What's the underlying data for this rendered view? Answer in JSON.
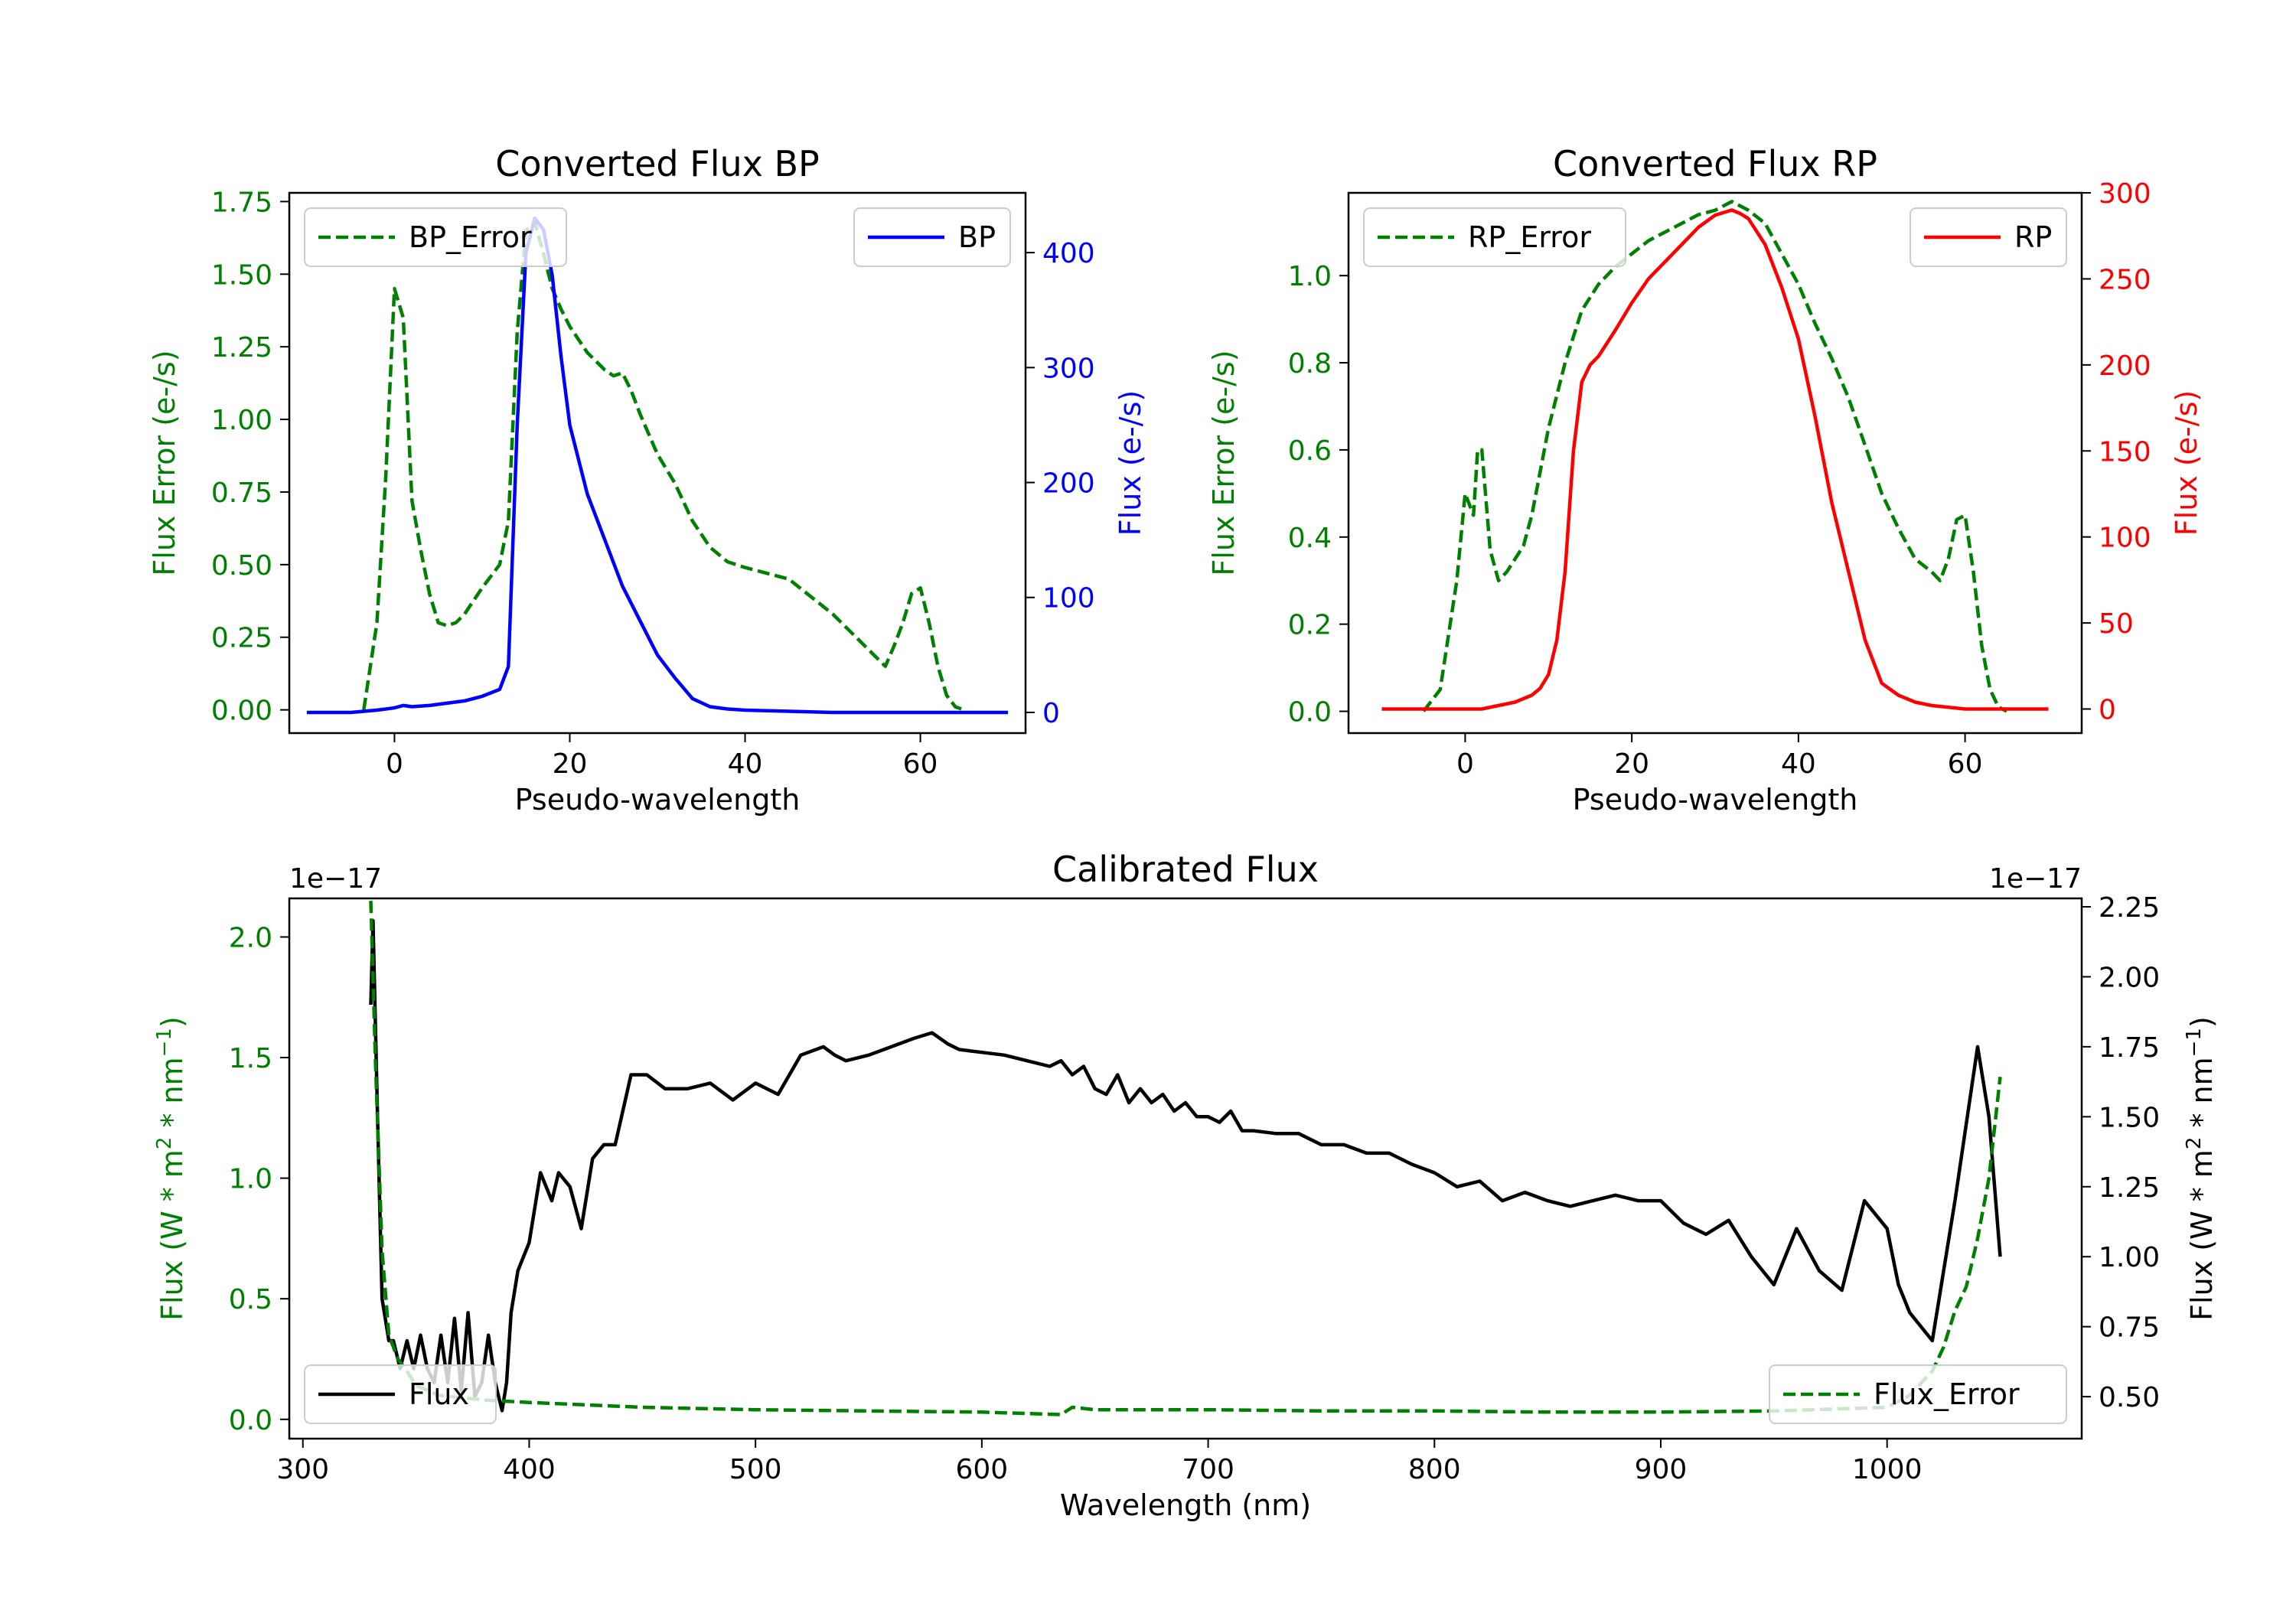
{
  "chart_data": [
    {
      "id": "bp",
      "type": "line",
      "title": "Converted Flux BP",
      "xlabel": "Pseudo-wavelength",
      "xlim": [
        -12,
        72
      ],
      "x_ticks": [
        0,
        20,
        40,
        60
      ],
      "left_axis": {
        "label": "Flux Error (e-/s)",
        "color": "#008000",
        "lim": [
          -0.08,
          1.78
        ],
        "ticks": [
          "0.00",
          "0.25",
          "0.50",
          "0.75",
          "1.00",
          "1.25",
          "1.50",
          "1.75"
        ]
      },
      "right_axis": {
        "label": "Flux (e-/s)",
        "color": "#0000ff",
        "lim": [
          -18,
          452
        ],
        "ticks": [
          "0",
          "100",
          "200",
          "300",
          "400"
        ]
      },
      "series": [
        {
          "name": "BP_Error",
          "axis": "left",
          "color": "#008000",
          "style": "dashed",
          "x": [
            -3.5,
            -2,
            -1,
            0,
            1,
            2,
            3,
            4,
            5,
            6,
            7,
            8,
            10,
            12,
            13,
            14,
            15,
            16,
            17,
            18,
            19,
            20,
            22,
            24,
            25,
            26,
            27,
            28,
            30,
            32,
            34,
            36,
            38,
            40,
            45,
            50,
            55,
            56,
            57,
            58,
            59,
            60,
            61,
            62,
            63,
            64,
            65
          ],
          "y": [
            0,
            0.3,
            0.8,
            1.45,
            1.35,
            0.72,
            0.55,
            0.4,
            0.3,
            0.29,
            0.3,
            0.33,
            0.42,
            0.5,
            0.65,
            1.3,
            1.65,
            1.68,
            1.57,
            1.45,
            1.38,
            1.32,
            1.23,
            1.17,
            1.15,
            1.16,
            1.1,
            1.02,
            0.88,
            0.78,
            0.65,
            0.56,
            0.51,
            0.49,
            0.45,
            0.33,
            0.18,
            0.15,
            0.22,
            0.3,
            0.4,
            0.42,
            0.3,
            0.15,
            0.05,
            0.01,
            0
          ]
        },
        {
          "name": "BP",
          "axis": "right",
          "color": "#0000ff",
          "style": "solid",
          "x": [
            -10,
            -5,
            -2,
            0,
            1,
            2,
            4,
            6,
            8,
            10,
            12,
            13,
            14,
            15,
            16,
            17,
            18,
            19,
            20,
            22,
            24,
            26,
            28,
            30,
            32,
            34,
            36,
            38,
            40,
            45,
            50,
            55,
            60,
            65,
            70
          ],
          "y": [
            0,
            0,
            2,
            4,
            6,
            5,
            6,
            8,
            10,
            14,
            20,
            40,
            250,
            400,
            430,
            420,
            380,
            310,
            250,
            190,
            150,
            110,
            80,
            50,
            30,
            12,
            5,
            3,
            2,
            1,
            0,
            0,
            0,
            0,
            0
          ]
        }
      ],
      "legend": [
        {
          "label": "BP_Error",
          "position": "upper left"
        },
        {
          "label": "BP",
          "position": "upper right"
        }
      ]
    },
    {
      "id": "rp",
      "type": "line",
      "title": "Converted Flux RP",
      "xlabel": "Pseudo-wavelength",
      "xlim": [
        -14,
        74
      ],
      "x_ticks": [
        0,
        20,
        40,
        60
      ],
      "left_axis": {
        "label": "Flux Error (e-/s)",
        "color": "#008000",
        "lim": [
          -0.05,
          1.19
        ],
        "ticks": [
          "0.0",
          "0.2",
          "0.4",
          "0.6",
          "0.8",
          "1.0"
        ]
      },
      "right_axis": {
        "label": "Flux (e-/s)",
        "color": "#ff0000",
        "lim": [
          -14,
          300
        ],
        "ticks": [
          "0",
          "50",
          "100",
          "150",
          "200",
          "250",
          "300"
        ]
      },
      "series": [
        {
          "name": "RP_Error",
          "axis": "left",
          "color": "#008000",
          "style": "dashed",
          "x": [
            -5,
            -3,
            -1,
            0,
            1,
            1.5,
            2,
            3,
            4,
            5,
            6,
            7,
            8,
            10,
            12,
            14,
            16,
            18,
            20,
            22,
            24,
            26,
            28,
            30,
            32,
            34,
            36,
            38,
            40,
            42,
            44,
            46,
            48,
            50,
            52,
            54,
            56,
            57,
            58,
            59,
            60,
            61,
            62,
            63,
            64,
            65
          ],
          "y": [
            0,
            0.05,
            0.3,
            0.5,
            0.45,
            0.6,
            0.6,
            0.37,
            0.3,
            0.32,
            0.35,
            0.38,
            0.45,
            0.65,
            0.8,
            0.92,
            0.98,
            1.02,
            1.05,
            1.08,
            1.1,
            1.12,
            1.14,
            1.15,
            1.17,
            1.15,
            1.12,
            1.05,
            0.98,
            0.89,
            0.81,
            0.72,
            0.61,
            0.5,
            0.42,
            0.35,
            0.32,
            0.3,
            0.35,
            0.44,
            0.45,
            0.32,
            0.15,
            0.05,
            0.01,
            0
          ]
        },
        {
          "name": "RP",
          "axis": "right",
          "color": "#ff0000",
          "style": "solid",
          "x": [
            -10,
            -5,
            0,
            2,
            4,
            6,
            7,
            8,
            9,
            10,
            11,
            12,
            13,
            14,
            15,
            16,
            18,
            20,
            22,
            24,
            26,
            28,
            30,
            32,
            33,
            34,
            36,
            38,
            40,
            42,
            44,
            46,
            48,
            50,
            52,
            54,
            56,
            58,
            60,
            65,
            70
          ],
          "y": [
            0,
            0,
            0,
            0,
            2,
            4,
            6,
            8,
            12,
            20,
            40,
            80,
            150,
            190,
            200,
            205,
            220,
            236,
            250,
            260,
            270,
            280,
            287,
            290,
            288,
            285,
            270,
            245,
            215,
            170,
            120,
            80,
            40,
            15,
            8,
            4,
            2,
            1,
            0,
            0,
            0
          ]
        }
      ],
      "legend": [
        {
          "label": "RP_Error",
          "position": "upper left"
        },
        {
          "label": "RP",
          "position": "upper right"
        }
      ]
    },
    {
      "id": "cal",
      "type": "line",
      "title": "Calibrated Flux",
      "xlabel": "Wavelength (nm)",
      "xlim": [
        294,
        1086
      ],
      "x_ticks": [
        300,
        400,
        500,
        600,
        700,
        800,
        900,
        1000
      ],
      "left_axis": {
        "label": "Flux (W * m^2 * nm^-1)",
        "color": "#008000",
        "lim": [
          -0.08,
          2.16
        ],
        "ticks": [
          "0.0",
          "0.5",
          "1.0",
          "1.5",
          "2.0"
        ],
        "offset_text": "1e−17"
      },
      "right_axis": {
        "label": "Flux (W * m^2 * nm^-1)",
        "color": "#000000",
        "lim": [
          0.35,
          2.28
        ],
        "ticks": [
          "0.50",
          "0.75",
          "1.00",
          "1.25",
          "1.50",
          "1.75",
          "2.00",
          "2.25"
        ],
        "offset_text": "1e−17"
      },
      "series": [
        {
          "name": "Flux",
          "axis": "right",
          "color": "#000000",
          "style": "solid",
          "x": [
            330,
            331,
            333,
            335,
            338,
            340,
            343,
            346,
            349,
            352,
            355,
            358,
            361,
            364,
            367,
            370,
            373,
            376,
            379,
            382,
            385,
            388,
            390,
            392,
            395,
            400,
            405,
            410,
            413,
            418,
            423,
            428,
            433,
            438,
            445,
            452,
            460,
            470,
            480,
            490,
            500,
            510,
            520,
            530,
            535,
            540,
            550,
            560,
            570,
            578,
            585,
            590,
            600,
            610,
            620,
            630,
            635,
            640,
            645,
            650,
            655,
            660,
            665,
            670,
            675,
            680,
            685,
            690,
            695,
            700,
            705,
            710,
            715,
            720,
            730,
            740,
            750,
            760,
            770,
            780,
            790,
            800,
            810,
            820,
            830,
            840,
            850,
            860,
            870,
            880,
            890,
            900,
            910,
            920,
            930,
            940,
            950,
            960,
            970,
            980,
            990,
            1000,
            1005,
            1010,
            1020,
            1030,
            1040,
            1045,
            1050
          ],
          "y": [
            1.9,
            2.2,
            1.5,
            0.85,
            0.7,
            0.7,
            0.6,
            0.7,
            0.6,
            0.72,
            0.6,
            0.55,
            0.72,
            0.55,
            0.78,
            0.52,
            0.8,
            0.5,
            0.55,
            0.72,
            0.55,
            0.45,
            0.55,
            0.8,
            0.95,
            1.05,
            1.3,
            1.2,
            1.3,
            1.25,
            1.1,
            1.35,
            1.4,
            1.4,
            1.65,
            1.65,
            1.6,
            1.6,
            1.62,
            1.56,
            1.62,
            1.58,
            1.72,
            1.75,
            1.72,
            1.7,
            1.72,
            1.75,
            1.78,
            1.8,
            1.76,
            1.74,
            1.73,
            1.72,
            1.7,
            1.68,
            1.7,
            1.65,
            1.68,
            1.6,
            1.58,
            1.65,
            1.55,
            1.6,
            1.55,
            1.58,
            1.52,
            1.55,
            1.5,
            1.5,
            1.48,
            1.52,
            1.45,
            1.45,
            1.44,
            1.44,
            1.4,
            1.4,
            1.37,
            1.37,
            1.33,
            1.3,
            1.25,
            1.27,
            1.2,
            1.23,
            1.2,
            1.18,
            1.2,
            1.22,
            1.2,
            1.2,
            1.12,
            1.08,
            1.13,
            1.0,
            0.9,
            1.1,
            0.95,
            0.88,
            1.2,
            1.1,
            0.9,
            0.8,
            0.7,
            1.2,
            1.75,
            1.5,
            1.0
          ]
        },
        {
          "name": "Flux_Error",
          "axis": "left",
          "color": "#008000",
          "style": "dashed",
          "x": [
            330,
            332,
            335,
            338,
            342,
            346,
            350,
            360,
            380,
            400,
            450,
            500,
            550,
            600,
            635,
            640,
            650,
            700,
            750,
            800,
            850,
            900,
            950,
            1000,
            1010,
            1015,
            1020,
            1025,
            1030,
            1035,
            1040,
            1045,
            1050
          ],
          "y": [
            2.15,
            1.5,
            0.7,
            0.35,
            0.25,
            0.2,
            0.14,
            0.1,
            0.08,
            0.07,
            0.05,
            0.04,
            0.035,
            0.03,
            0.02,
            0.05,
            0.04,
            0.04,
            0.035,
            0.035,
            0.03,
            0.03,
            0.035,
            0.05,
            0.1,
            0.15,
            0.2,
            0.3,
            0.45,
            0.55,
            0.75,
            1.0,
            1.42
          ]
        }
      ],
      "legend": [
        {
          "label": "Flux",
          "position": "lower left"
        },
        {
          "label": "Flux_Error",
          "position": "lower right"
        }
      ]
    }
  ]
}
